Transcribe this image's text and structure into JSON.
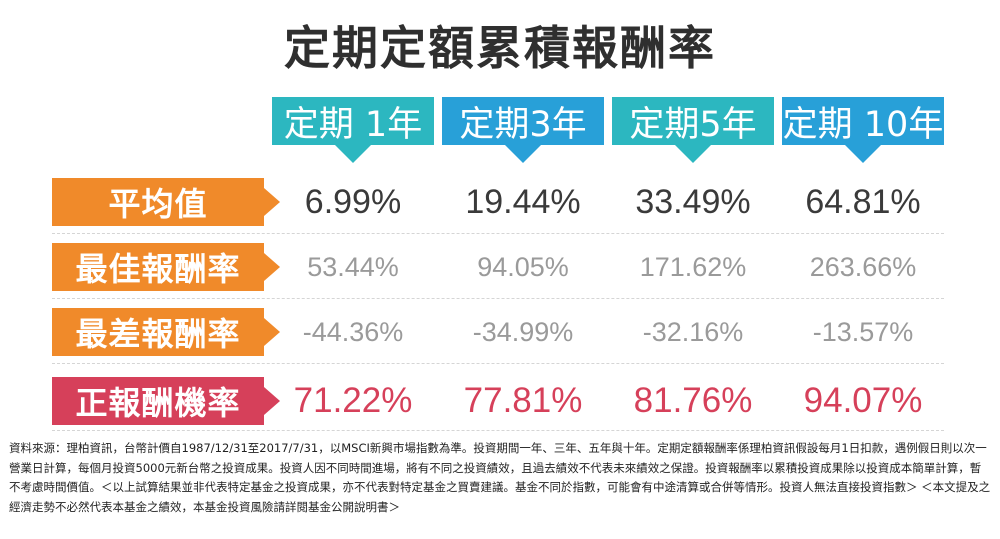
{
  "title": "定期定額累積報酬率",
  "columns": [
    {
      "label": "定期 1年",
      "color": "#2cb7c0"
    },
    {
      "label": "定期3年",
      "color": "#28a0d8"
    },
    {
      "label": "定期5年",
      "color": "#2cb7c0"
    },
    {
      "label": "定期 10年",
      "color": "#28a0d8"
    }
  ],
  "rows": [
    {
      "label": "平均值",
      "label_color": "#f08a2a",
      "value_color": "#3a3a3a",
      "values": [
        "6.99%",
        "19.44%",
        "33.49%",
        "64.81%"
      ]
    },
    {
      "label": "最佳報酬率",
      "label_color": "#f08a2a",
      "value_color": "#9a9a9a",
      "values": [
        "53.44%",
        "94.05%",
        "171.62%",
        "263.66%"
      ]
    },
    {
      "label": "最差報酬率",
      "label_color": "#f08a2a",
      "value_color": "#9a9a9a",
      "values": [
        "-44.36%",
        "-34.99%",
        "-32.16%",
        "-13.57%"
      ]
    },
    {
      "label": "正報酬機率",
      "label_color": "#d6405a",
      "value_color": "#d6405a",
      "values": [
        "71.22%",
        "77.81%",
        "81.76%",
        "94.07%"
      ]
    }
  ],
  "footnote": "資料來源：理柏資訊，台幣計價自1987/12/31至2017/7/31，以MSCI新興市場指數為準。投資期間一年、三年、五年與十年。定期定額報酬率係理柏資訊假設每月1日扣款，遇例假日則以次一營業日計算，每個月投資5000元新台幣之投資成果。投資人因不同時間進場，將有不同之投資績效，且過去績效不代表未來績效之保證。投資報酬率以累積投資成果除以投資成本簡單計算，暫不考慮時間價值。＜以上試算結果並非代表特定基金之投資成果，亦不代表對特定基金之買賣建議。基金不同於指數，可能會有中途清算或合併等情形。投資人無法直接投資指數＞ ＜本文提及之經濟走勢不必然代表本基金之績效，本基金投資風險請詳閱基金公開說明書＞"
}
